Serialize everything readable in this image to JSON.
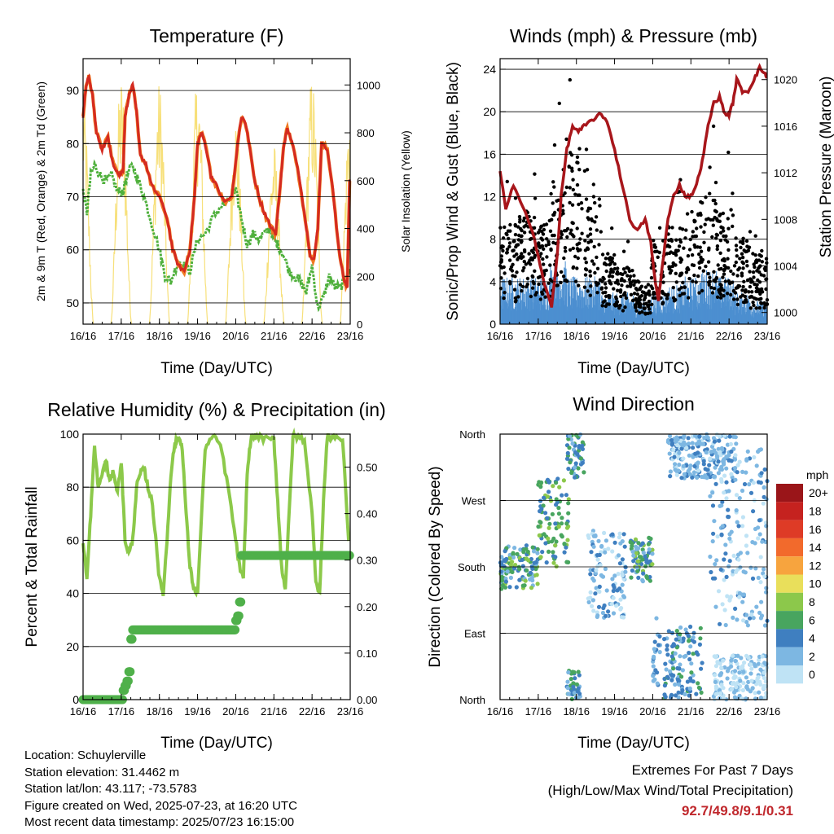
{
  "panels": {
    "temperature": {
      "title": "Temperature (F)",
      "ylabel_left": "2m & 9m T (Red, Orange) & 2m Td (Green)",
      "ylabel_right": "Solar Insolation (Yellow)",
      "xlabel": "Time (Day/UTC)"
    },
    "winds": {
      "title": "Winds (mph) & Pressure (mb)",
      "ylabel_left": "Sonic/Prop Wind & Gust (Blue, Black)",
      "ylabel_right": "Station Pressure (Maroon)",
      "xlabel": "Time (Day/UTC)"
    },
    "humidity": {
      "title": "Relative Humidity (%) & Precipitation (in)",
      "ylabel_left": "Percent & Total Rainfall",
      "xlabel": "Time (Day/UTC)"
    },
    "direction": {
      "title": "Wind Direction",
      "ylabel_left": "Direction (Colored By Speed)",
      "xlabel": "Time (Day/UTC)"
    }
  },
  "metadata": {
    "location": "Location: Schuylerville",
    "elevation": "Station elevation: 31.4462 m",
    "latlon": "Station lat/lon: 43.117; -73.5783",
    "created": "Figure created on Wed, 2025-07-23, at 16:20 UTC",
    "recent": "Most recent data timestamp: 2025/07/23 16:15:00"
  },
  "extremes": {
    "title": "Extremes For Past 7 Days",
    "subtitle": "(High/Low/Max Wind/Total Precipitation)",
    "values": "92.7/49.8/9.1/0.31"
  },
  "colors": {
    "temp2m": "#d42a20",
    "temp9m": "#f07a22",
    "dewpoint": "#4fb03c",
    "solar": "#f7e07a",
    "wind": "#4c8fd0",
    "gust": "#000000",
    "pressure": "#a8161b",
    "rh": "#8cc94a",
    "precip": "#4fb04a"
  },
  "chart_data": [
    {
      "type": "line",
      "title": "Temperature (F)",
      "xlabel": "Time (Day/UTC)",
      "x_ticks": [
        "16/16",
        "17/16",
        "18/16",
        "19/16",
        "20/16",
        "21/16",
        "22/16",
        "23/16"
      ],
      "xlim": [
        0,
        7
      ],
      "ylim": [
        46,
        96
      ],
      "y_ticks": [
        50,
        60,
        70,
        80,
        90
      ],
      "y2lim": [
        0,
        1110
      ],
      "y2_ticks": [
        0,
        200,
        400,
        600,
        800,
        1000
      ],
      "series": [
        {
          "key": "temp",
          "x": [
            0,
            0.08,
            0.15,
            0.25,
            0.35,
            0.5,
            0.65,
            0.8,
            0.95,
            1.05,
            1.1,
            1.2,
            1.3,
            1.4,
            1.5,
            1.65,
            1.8,
            2.0,
            2.2,
            2.35,
            2.5,
            2.65,
            2.8,
            2.92,
            3.0,
            3.1,
            3.2,
            3.35,
            3.5,
            3.7,
            3.9,
            4.05,
            4.15,
            4.25,
            4.35,
            4.5,
            4.65,
            4.8,
            4.95,
            5.05,
            5.15,
            5.25,
            5.35,
            5.5,
            5.7,
            5.85,
            5.95,
            6.05,
            6.15,
            6.25,
            6.4,
            6.55,
            6.7,
            6.85,
            6.92,
            7.0
          ],
          "y": [
            85,
            91,
            92.5,
            89,
            82,
            79,
            81,
            76,
            74,
            75,
            85,
            89,
            91,
            86,
            78,
            76,
            72,
            70,
            66,
            60,
            57,
            56,
            60,
            70,
            80,
            82,
            80,
            74,
            72,
            69,
            70,
            80,
            85,
            84,
            80,
            73,
            69,
            66,
            64,
            63,
            71,
            79,
            83,
            80,
            72,
            64,
            59,
            58,
            64,
            80,
            79,
            71,
            60,
            54,
            53,
            78
          ]
        },
        {
          "key": "dewpoint",
          "x": [
            0,
            0.1,
            0.2,
            0.3,
            0.45,
            0.6,
            0.75,
            0.9,
            1.05,
            1.15,
            1.3,
            1.45,
            1.6,
            1.8,
            2.0,
            2.15,
            2.3,
            2.5,
            2.65,
            2.8,
            3.0,
            3.2,
            3.4,
            3.6,
            3.8,
            4.0,
            4.15,
            4.3,
            4.45,
            4.6,
            4.75,
            4.9,
            5.0,
            5.1,
            5.25,
            5.4,
            5.55,
            5.7,
            5.85,
            6.0,
            6.15,
            6.3,
            6.45,
            6.6,
            6.75,
            6.9,
            7.0
          ],
          "y": [
            71,
            67,
            74,
            76,
            74,
            73,
            74,
            71,
            71,
            74,
            76,
            73,
            70,
            65,
            60,
            55,
            54,
            58,
            57,
            56,
            62,
            63,
            66,
            68,
            69,
            71,
            66,
            61,
            63,
            62,
            63,
            64,
            62,
            61,
            59,
            56,
            55,
            54,
            52,
            57,
            49,
            51,
            55,
            53,
            53,
            55,
            56
          ]
        },
        {
          "key": "solar",
          "days": [
            0,
            1,
            2,
            3,
            4,
            5,
            6,
            7
          ],
          "peaks": [
            1000,
            1050,
            1020,
            1040,
            900,
            760,
            1050,
            950
          ]
        }
      ]
    },
    {
      "type": "line",
      "title": "Winds (mph) & Pressure (mb)",
      "xlabel": "Time (Day/UTC)",
      "x_ticks": [
        "16/16",
        "17/16",
        "18/16",
        "19/16",
        "20/16",
        "21/16",
        "22/16",
        "23/16"
      ],
      "xlim": [
        0,
        7
      ],
      "ylim": [
        0,
        25
      ],
      "y_ticks": [
        0,
        4,
        8,
        12,
        16,
        20,
        24
      ],
      "y2lim": [
        999,
        1021.8
      ],
      "y2_ticks": [
        1000,
        1004,
        1008,
        1012,
        1016,
        1020
      ],
      "series": [
        {
          "key": "pressure",
          "x": [
            0,
            0.15,
            0.35,
            0.6,
            0.85,
            1.05,
            1.2,
            1.35,
            1.5,
            1.6,
            1.75,
            1.9,
            2.05,
            2.2,
            2.4,
            2.6,
            2.8,
            3.0,
            3.2,
            3.4,
            3.6,
            3.8,
            3.95,
            4.05,
            4.15,
            4.25,
            4.4,
            4.55,
            4.7,
            4.85,
            5.0,
            5.15,
            5.3,
            5.45,
            5.6,
            5.75,
            5.9,
            6.0,
            6.1,
            6.2,
            6.35,
            6.5,
            6.65,
            6.8,
            6.95,
            7.0
          ],
          "y": [
            1012,
            1009,
            1011,
            1009,
            1007,
            1004,
            1002,
            1000.5,
            1005,
            1010,
            1014,
            1016,
            1015.5,
            1016,
            1016.5,
            1017,
            1016.5,
            1014,
            1011,
            1008,
            1007,
            1008,
            1006,
            1003,
            1001,
            1004,
            1008,
            1010,
            1011,
            1010,
            1010,
            1011,
            1013,
            1016,
            1018,
            1018.5,
            1017,
            1017,
            1018,
            1020,
            1019,
            1019,
            1020,
            1021,
            1020.5,
            1020
          ]
        },
        {
          "key": "wind",
          "level": [
            3,
            3,
            3,
            4,
            3,
            3,
            2,
            2,
            1.5,
            2,
            2.5,
            3,
            3.5,
            3,
            2,
            1.5
          ],
          "range_note": "mph"
        },
        {
          "key": "gust",
          "level": [
            7,
            8,
            7,
            10,
            12,
            9,
            5,
            4,
            3,
            6,
            7,
            8,
            9,
            8,
            6,
            5
          ],
          "range_note": "mph"
        }
      ]
    },
    {
      "type": "line",
      "title": "Relative Humidity (%) & Precipitation (in)",
      "xlabel": "Time (Day/UTC)",
      "x_ticks": [
        "16/16",
        "17/16",
        "18/16",
        "19/16",
        "20/16",
        "21/16",
        "22/16",
        "23/16"
      ],
      "xlim": [
        0,
        7
      ],
      "ylim": [
        0,
        100
      ],
      "y_ticks": [
        0,
        20,
        40,
        60,
        80,
        100
      ],
      "y2lim": [
        0,
        0.571
      ],
      "y2_ticks": [
        "0.00",
        "0.10",
        "0.20",
        "0.30",
        "0.40",
        "0.50"
      ],
      "series": [
        {
          "key": "rh",
          "x": [
            0,
            0.1,
            0.2,
            0.3,
            0.4,
            0.5,
            0.6,
            0.7,
            0.8,
            0.9,
            1.0,
            1.1,
            1.2,
            1.3,
            1.4,
            1.5,
            1.6,
            1.7,
            1.8,
            1.9,
            2.0,
            2.1,
            2.2,
            2.3,
            2.4,
            2.5,
            2.6,
            2.7,
            2.8,
            2.9,
            3.0,
            3.2,
            3.4,
            3.6,
            3.8,
            4.0,
            4.1,
            4.2,
            4.3,
            4.4,
            4.5,
            4.6,
            4.8,
            5.0,
            5.1,
            5.2,
            5.3,
            5.4,
            5.5,
            5.6,
            5.8,
            6.0,
            6.1,
            6.2,
            6.3,
            6.4,
            6.5,
            6.6,
            6.8,
            7.0
          ],
          "y": [
            60,
            45,
            70,
            95,
            80,
            85,
            90,
            82,
            86,
            78,
            90,
            60,
            55,
            60,
            80,
            85,
            87,
            80,
            75,
            62,
            45,
            40,
            60,
            85,
            96,
            99,
            95,
            70,
            50,
            42,
            40,
            95,
            99,
            96,
            80,
            60,
            50,
            45,
            85,
            99,
            99,
            99,
            98,
            98,
            75,
            50,
            42,
            70,
            99,
            99,
            98,
            70,
            45,
            40,
            75,
            99,
            99,
            99,
            98,
            50
          ]
        },
        {
          "key": "precip",
          "x": [
            0,
            0.5,
            1.0,
            1.05,
            1.1,
            1.15,
            1.2,
            1.25,
            1.3,
            2.0,
            3.0,
            3.9,
            4.0,
            4.05,
            4.1,
            4.15,
            4.2,
            5.0,
            6.0,
            7.0
          ],
          "y": [
            0,
            0,
            0,
            0.02,
            0.03,
            0.04,
            0.06,
            0.13,
            0.15,
            0.15,
            0.15,
            0.15,
            0.17,
            0.18,
            0.21,
            0.31,
            0.31,
            0.31,
            0.31,
            0.31
          ]
        }
      ]
    },
    {
      "type": "scatter",
      "title": "Wind Direction",
      "xlabel": "Time (Day/UTC)",
      "x_ticks": [
        "16/16",
        "17/16",
        "18/16",
        "19/16",
        "20/16",
        "21/16",
        "22/16",
        "23/16"
      ],
      "xlim": [
        0,
        7
      ],
      "y_ticks": [
        "North",
        "East",
        "South",
        "West",
        "North"
      ],
      "ylim": [
        0,
        360
      ],
      "legend": {
        "title": "mph",
        "labels": [
          "20+",
          "18",
          "16",
          "14",
          "12",
          "10",
          "8",
          "6",
          "4",
          "2",
          "0"
        ],
        "colors": [
          "#9a1519",
          "#c5221f",
          "#de3b26",
          "#f26a2c",
          "#f7a43e",
          "#e9df5b",
          "#8cc84b",
          "#48a55f",
          "#3f7fc0",
          "#7db7e2",
          "#bfe3f5"
        ],
        "position": "right"
      },
      "series": [
        {
          "key": "dir_clusters",
          "points_note": "directions in degrees; speed class indexes legend",
          "clusters": [
            {
              "x": [
                0,
                1.0
              ],
              "dir": [
                150,
                210
              ],
              "speed": [
                2,
                8
              ]
            },
            {
              "x": [
                1.0,
                1.8
              ],
              "dir": [
                180,
                300
              ],
              "speed": [
                4,
                8
              ]
            },
            {
              "x": [
                1.75,
                2.1
              ],
              "dir": [
                0,
                40
              ],
              "speed": [
                2,
                6
              ]
            },
            {
              "x": [
                1.75,
                2.2
              ],
              "dir": [
                300,
                360
              ],
              "speed": [
                2,
                6
              ]
            },
            {
              "x": [
                2.3,
                3.3
              ],
              "dir": [
                110,
                230
              ],
              "speed": [
                0,
                4
              ]
            },
            {
              "x": [
                3.4,
                4.0
              ],
              "dir": [
                160,
                220
              ],
              "speed": [
                2,
                8
              ]
            },
            {
              "x": [
                4.0,
                4.2
              ],
              "dir": [
                20,
                120
              ],
              "speed": [
                2,
                4
              ]
            },
            {
              "x": [
                4.3,
                5.3
              ],
              "dir": [
                0,
                100
              ],
              "speed": [
                2,
                6
              ]
            },
            {
              "x": [
                4.4,
                6.2
              ],
              "dir": [
                300,
                360
              ],
              "speed": [
                0,
                4
              ]
            },
            {
              "x": [
                5.5,
                7.0
              ],
              "dir": [
                100,
                340
              ],
              "speed": [
                0,
                4
              ]
            },
            {
              "x": [
                5.6,
                7.0
              ],
              "dir": [
                0,
                60
              ],
              "speed": [
                0,
                2
              ]
            }
          ]
        }
      ]
    }
  ]
}
